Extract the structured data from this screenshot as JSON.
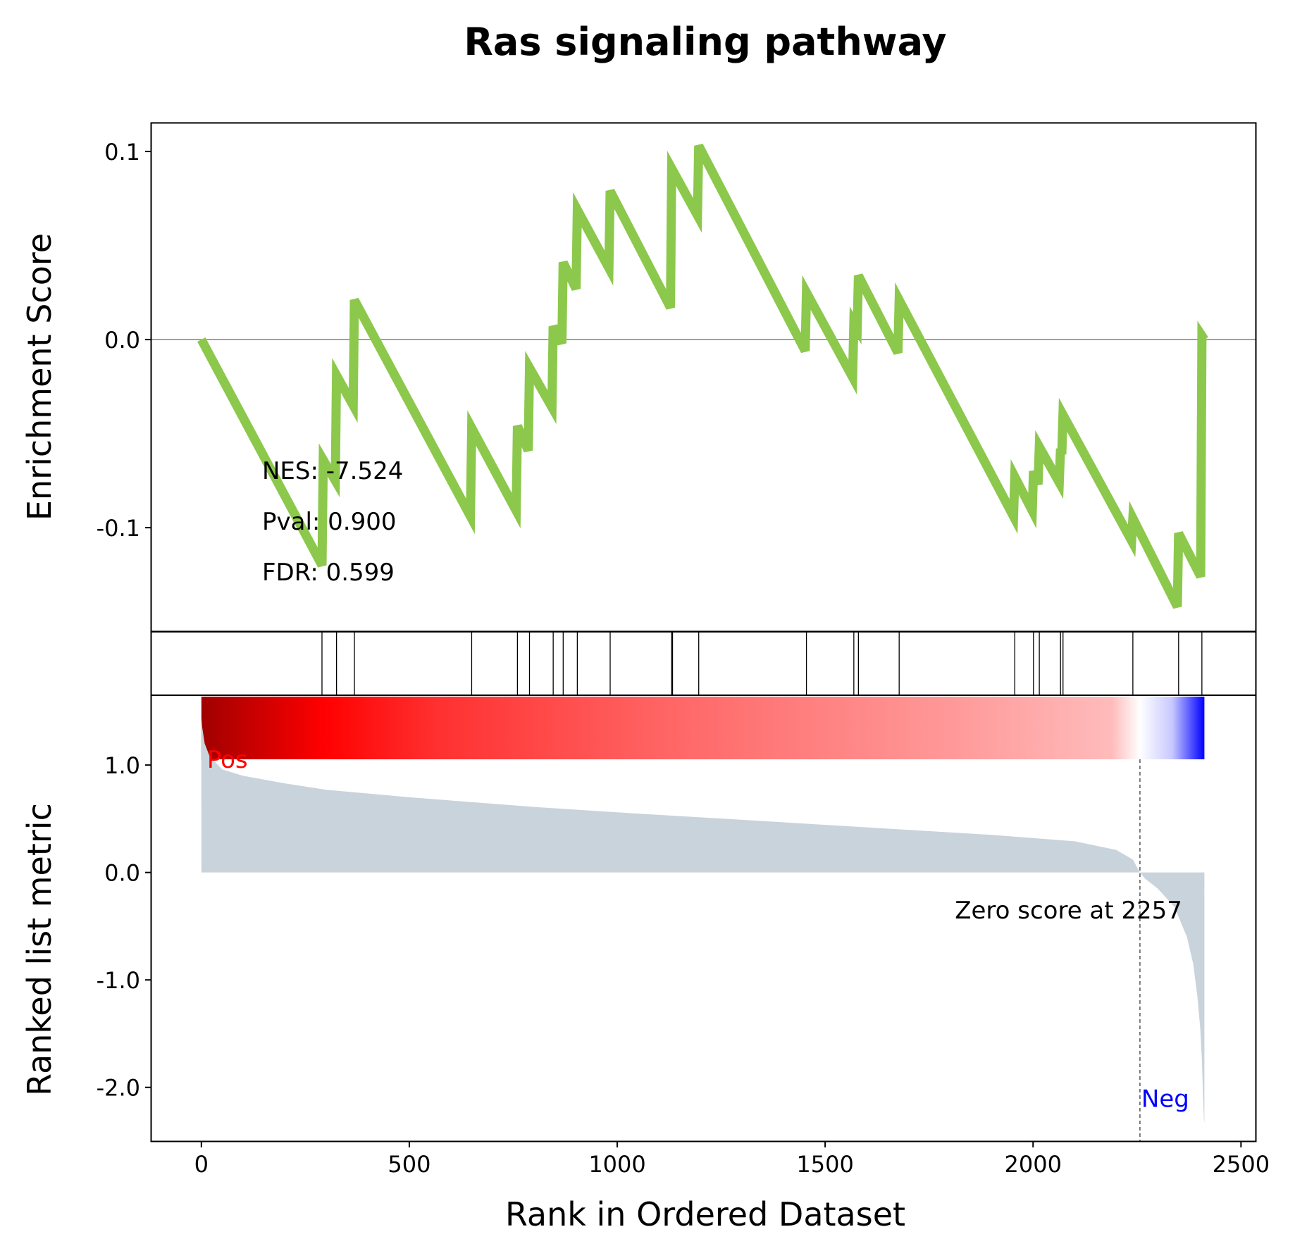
{
  "colors": {
    "es_line": "#8CC84B",
    "metric_fill": "#C9D3DC",
    "pos_label": "#FF0000",
    "neg_label": "#0000FF",
    "hit_line": "#000000",
    "zero_line": "#808080",
    "gradient": [
      "#A00000",
      "#FF0000",
      "#FF3030",
      "#FF6666",
      "#FF9999",
      "#FFBBBB",
      "#FFFFFF",
      "#C8C8FF",
      "#0000FF"
    ]
  },
  "chart_data": {
    "type": "line",
    "title": "Ras signaling pathway",
    "panels": {
      "es": {
        "ylabel": "Enrichment Score",
        "ylim": [
          -0.155,
          0.115
        ],
        "yticks": [
          0.1,
          0.0,
          -0.1
        ],
        "yticklabels": [
          "0.1",
          "0.0",
          "-0.1"
        ],
        "hline": 0.0,
        "grid": false
      },
      "metric": {
        "ylabel": "Ranked list metric",
        "ylim": [
          -2.5,
          1.65
        ],
        "yticks": [
          1.0,
          0.0,
          -1.0,
          -2.0
        ],
        "yticklabels": [
          "1.0",
          "0.0",
          "-1.0",
          "-2.0"
        ],
        "grid": false
      }
    },
    "xlabel": "Rank in Ordered Dataset",
    "xlim": [
      -120,
      2535
    ],
    "xticks": [
      0,
      500,
      1000,
      1500,
      2000,
      2500
    ],
    "xticklabels": [
      "0",
      "500",
      "1000",
      "1500",
      "2000",
      "2500"
    ],
    "stats": [
      "NES: -7.524",
      "Pval: 0.900",
      "FDR: 0.599"
    ],
    "pos_label": "Pos",
    "neg_label": "Neg",
    "zero_score_text": "Zero score at 2257",
    "zero_score_rank": 2257,
    "n_genes": 2412,
    "running_es": {
      "x": [
        0,
        290,
        293,
        322,
        325,
        365,
        368,
        647,
        650,
        757,
        760,
        786,
        789,
        843,
        846,
        867,
        870,
        901,
        904,
        980,
        983,
        1128,
        1131,
        1193,
        1196,
        1452,
        1455,
        1566,
        1569,
        1577,
        1580,
        1675,
        1678,
        1953,
        1956,
        1998,
        2001,
        2012,
        2015,
        2063,
        2066,
        2069,
        2072,
        2237,
        2240,
        2347,
        2350,
        2403,
        2406,
        2412
      ],
      "y": [
        0.0,
        -0.12,
        -0.064,
        -0.075,
        -0.019,
        -0.035,
        0.021,
        -0.094,
        -0.047,
        -0.091,
        -0.046,
        -0.059,
        -0.015,
        -0.036,
        0.007,
        -0.002,
        0.041,
        0.027,
        0.069,
        0.038,
        0.079,
        0.017,
        0.091,
        0.066,
        0.103,
        -0.006,
        0.025,
        -0.02,
        0.009,
        0.006,
        0.034,
        -0.007,
        0.021,
        -0.094,
        -0.073,
        -0.091,
        -0.07,
        -0.077,
        -0.057,
        -0.076,
        -0.058,
        -0.061,
        -0.04,
        -0.107,
        -0.095,
        -0.142,
        -0.103,
        -0.126,
        0.002,
        0.0
      ]
    },
    "hits": [
      290,
      325,
      368,
      650,
      760,
      789,
      846,
      870,
      904,
      983,
      1131,
      1133,
      1196,
      1455,
      1569,
      1580,
      1678,
      1956,
      2001,
      2015,
      2066,
      2072,
      2240,
      2350,
      2406
    ],
    "ranked_metric": {
      "x": [
        0,
        2,
        8,
        20,
        50,
        100,
        200,
        300,
        500,
        800,
        1000,
        1300,
        1600,
        1900,
        2100,
        2200,
        2240,
        2257,
        2270,
        2300,
        2340,
        2370,
        2385,
        2395,
        2402,
        2406,
        2409,
        2411,
        2412
      ],
      "y": [
        1.45,
        1.35,
        1.2,
        1.08,
        0.96,
        0.9,
        0.83,
        0.77,
        0.7,
        0.61,
        0.56,
        0.49,
        0.42,
        0.35,
        0.29,
        0.21,
        0.12,
        0.0,
        -0.06,
        -0.15,
        -0.32,
        -0.6,
        -0.85,
        -1.15,
        -1.45,
        -1.75,
        -2.1,
        -2.3,
        -2.33
      ]
    }
  }
}
